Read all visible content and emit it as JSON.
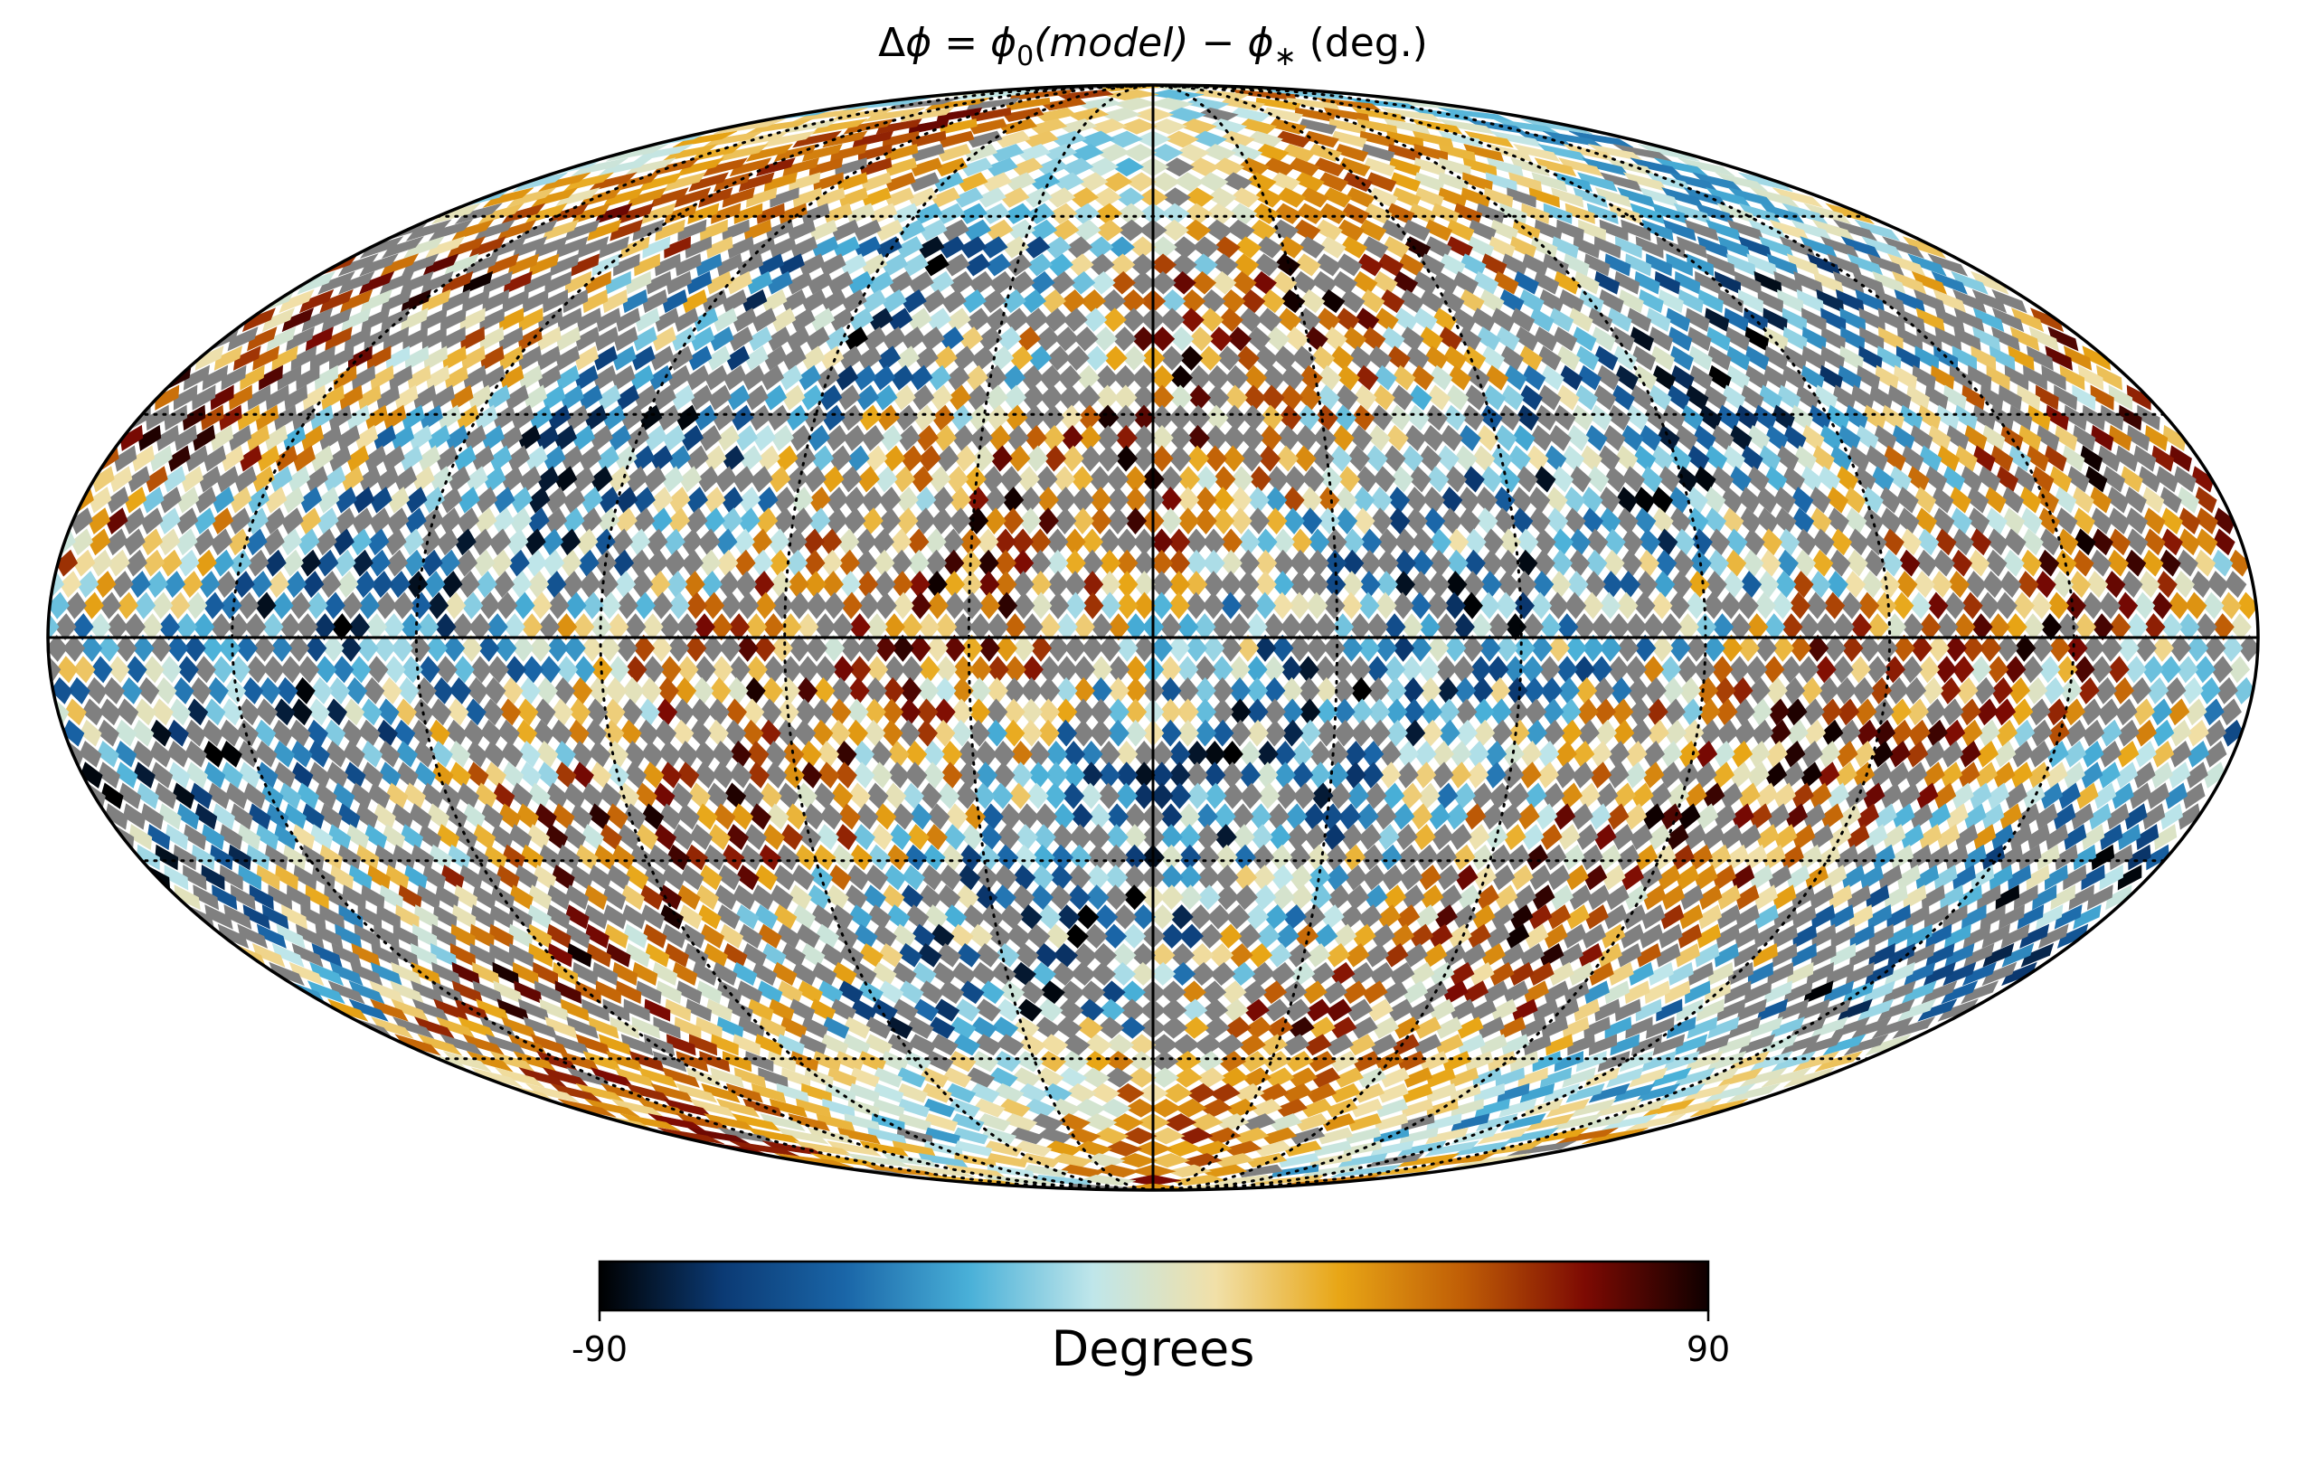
{
  "chart_data": {
    "type": "heatmap",
    "projection": "mollweide",
    "title": "Δϕ = ϕ0(model) − ϕ* (deg.)",
    "title_parts": {
      "delta": "Δ",
      "phi": "ϕ",
      "eq": " = ",
      "phi0": "ϕ",
      "sub0": "0",
      "model": "(model)",
      "minus": " − ",
      "phi_star": "ϕ",
      "sub_star": "∗",
      "units": " (deg.)"
    },
    "colorbar": {
      "label": "Degrees",
      "min": -90,
      "max": 90,
      "min_label": "-90",
      "max_label": "90",
      "colors": [
        "#000000",
        "#0b3a74",
        "#1a66a8",
        "#49b0d8",
        "#bfe6ea",
        "#f1e0a8",
        "#e8a616",
        "#c05e06",
        "#7d0a03",
        "#0f0000"
      ]
    },
    "masked_color": "#808080",
    "graticule": {
      "latitudes_deg": [
        -60,
        -30,
        30,
        60
      ],
      "longitudes_deg": [
        -150,
        -120,
        -90,
        -60,
        -30,
        30,
        60,
        90,
        120,
        150
      ],
      "equator_and_central_meridian_solid": true
    },
    "grid": true,
    "ylim": [
      -90,
      90
    ],
    "xlim": [
      -180,
      180
    ]
  }
}
